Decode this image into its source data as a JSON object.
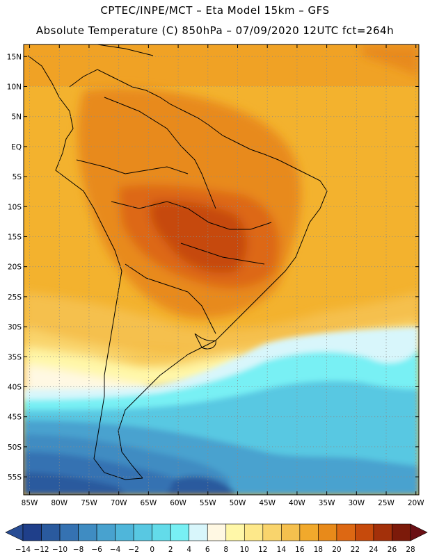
{
  "header": {
    "line1": "CPTEC/INPE/MCT –  Eta Model 15km – GFS",
    "line2": "Absolute Temperature (C) 850hPa – 07/09/2020 12UTC fct=264h"
  },
  "map": {
    "variable": "Absolute Temperature (C) 850hPa",
    "lat_labels": [
      "15N",
      "10N",
      "5N",
      "EQ",
      "5S",
      "10S",
      "15S",
      "20S",
      "25S",
      "30S",
      "35S",
      "40S",
      "45S",
      "50S",
      "55S"
    ],
    "lat_values": [
      15,
      10,
      5,
      0,
      -5,
      -10,
      -15,
      -20,
      -25,
      -30,
      -35,
      -40,
      -45,
      -50,
      -55
    ],
    "lon_labels": [
      "85W",
      "80W",
      "75W",
      "70W",
      "65W",
      "60W",
      "55W",
      "50W",
      "45W",
      "40W",
      "35W",
      "30W",
      "25W",
      "20W"
    ],
    "lon_values": [
      -85,
      -80,
      -75,
      -70,
      -65,
      -60,
      -55,
      -50,
      -45,
      -40,
      -35,
      -30,
      -25,
      -20
    ],
    "lat_range": [
      -58,
      17
    ],
    "lon_range": [
      -86,
      -19.5
    ]
  },
  "colorbar": {
    "labels": [
      "-14",
      "-12",
      "-10",
      "-8",
      "-6",
      "-4",
      "-2",
      "0",
      "2",
      "4",
      "6",
      "8",
      "10",
      "12",
      "14",
      "16",
      "18",
      "20",
      "22",
      "24",
      "26",
      "28"
    ],
    "colors": [
      "#1f3f8a",
      "#2a5a9e",
      "#3572b2",
      "#3f8cc2",
      "#48a2cf",
      "#4fb6da",
      "#58c8e2",
      "#63dbe9",
      "#78f0f4",
      "#d8f6fb",
      "#fff8e3",
      "#fff7a8",
      "#fde88a",
      "#f9d46c",
      "#f5c04e",
      "#f1a92c",
      "#e88a1a",
      "#dd6813",
      "#c64a0c",
      "#a3300a",
      "#7c1a0a"
    ],
    "low_color": "#284c94",
    "high_color": "#6a0f14"
  }
}
